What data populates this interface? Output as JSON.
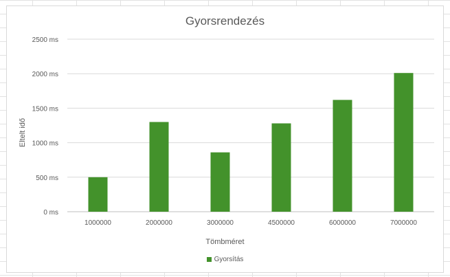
{
  "chart_data": {
    "type": "bar",
    "title": "Gyorsrendezés",
    "xlabel": "Tömbméret",
    "ylabel": "Eltelt idő",
    "categories": [
      "1000000",
      "2000000",
      "3000000",
      "4500000",
      "6000000",
      "7000000"
    ],
    "series": [
      {
        "name": "Gyorsítás",
        "values": [
          500,
          1300,
          860,
          1280,
          1620,
          2010
        ],
        "color": "#43922b"
      }
    ],
    "ylim": [
      0,
      2500
    ],
    "yticks": [
      0,
      500,
      1000,
      1500,
      2000,
      2500
    ],
    "ytick_labels": [
      "0 ms",
      "500 ms",
      "1000 ms",
      "1500 ms",
      "2000 ms",
      "2500 ms"
    ],
    "grid": true,
    "legend_position": "bottom"
  }
}
